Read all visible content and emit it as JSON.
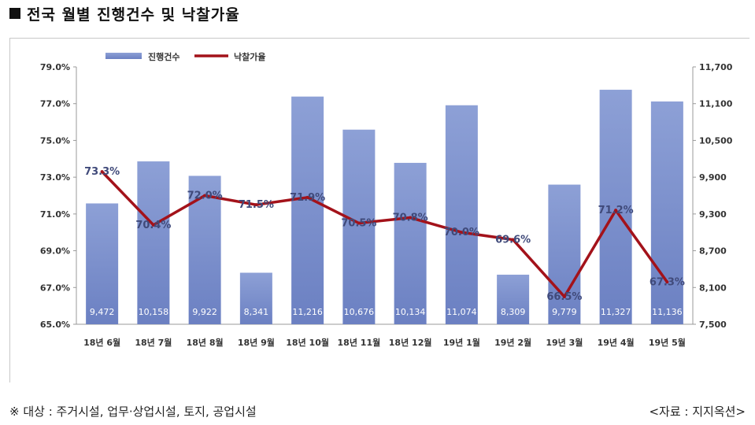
{
  "header": {
    "title": "전국 월별 진행건수 및 낙찰가율"
  },
  "footer": {
    "note": "※ 대상 : 주거시설, 업무·상업시설, 토지, 공업시설",
    "source": "<자료 : 지지옥션>"
  },
  "colors": {
    "bar": "#8da0d6",
    "bar_dark": "#6b80c2",
    "line": "#a3121a"
  },
  "chart_data": {
    "type": "bar",
    "categories": [
      "18년 6월",
      "18년 7월",
      "18년 8월",
      "18년 9월",
      "18년 10월",
      "18년 11월",
      "18년 12월",
      "19년 1월",
      "19년 2월",
      "19년 3월",
      "19년 4월",
      "19년 5월"
    ],
    "series": [
      {
        "name": "진행건수",
        "type": "bar",
        "axis": "right",
        "values": [
          9472,
          10158,
          9922,
          8341,
          11216,
          10676,
          10134,
          11074,
          8309,
          9779,
          11327,
          11136
        ],
        "labels": [
          "9,472",
          "10,158",
          "9,922",
          "8,341",
          "11,216",
          "10,676",
          "10,134",
          "11,074",
          "8,309",
          "9,779",
          "11,327",
          "11,136"
        ]
      },
      {
        "name": "낙찰가율",
        "type": "line",
        "axis": "left",
        "values": [
          73.3,
          70.4,
          72.0,
          71.5,
          71.9,
          70.5,
          70.8,
          70.0,
          69.6,
          66.5,
          71.2,
          67.3
        ],
        "labels": [
          "73.3%",
          "70.4%",
          "72.0%",
          "71.5%",
          "71.9%",
          "70.5%",
          "70.8%",
          "70.0%",
          "69.6%",
          "66.5%",
          "71.2%",
          "67.3%"
        ]
      }
    ],
    "y_left": {
      "range": [
        65,
        79
      ],
      "ticks": [
        "79.0%",
        "77.0%",
        "75.0%",
        "73.0%",
        "71.0%",
        "69.0%",
        "67.0%",
        "65.0%"
      ]
    },
    "y_right": {
      "range": [
        7500,
        11700
      ],
      "ticks": [
        "11,700",
        "11,100",
        "10,500",
        "9,900",
        "9,300",
        "8,700",
        "8,100",
        "7,500"
      ]
    },
    "legend": {
      "placement": "top-left"
    },
    "grid": false
  }
}
